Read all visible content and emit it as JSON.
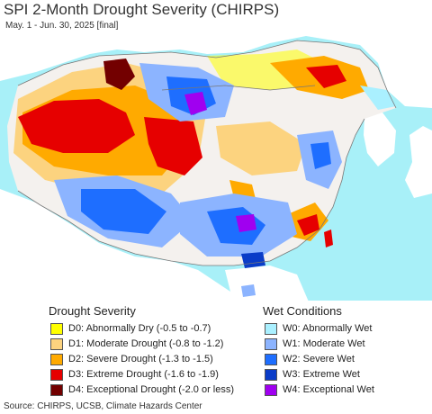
{
  "header": {
    "title": "SPI 2-Month Drought Severity (CHIRPS)",
    "subtitle": "May. 1 - Jun. 30, 2025 [final]"
  },
  "legend": {
    "drought_heading": "Drought Severity",
    "wet_heading": "Wet Conditions",
    "drought_items": [
      {
        "label": "D0: Abnormally Dry (-0.5 to -0.7)",
        "color": "#ffff00"
      },
      {
        "label": "D1: Moderate Drought (-0.8 to -1.2)",
        "color": "#fcd37f"
      },
      {
        "label": "D2: Severe Drought (-1.3 to -1.5)",
        "color": "#ffaa00"
      },
      {
        "label": "D3: Extreme Drought (-1.6 to -1.9)",
        "color": "#e60000"
      },
      {
        "label": "D4: Exceptional Drought (-2.0 or less)",
        "color": "#730000"
      }
    ],
    "wet_items": [
      {
        "label": "W0: Abnormally Wet",
        "color": "#aaf0ff"
      },
      {
        "label": "W1: Moderate Wet",
        "color": "#8cb4ff"
      },
      {
        "label": "W2: Severe Wet",
        "color": "#1e6eff"
      },
      {
        "label": "W3: Extreme Wet",
        "color": "#0a3cc8"
      },
      {
        "label": "W4: Exceptional Wet",
        "color": "#a000f0"
      }
    ]
  },
  "map_colors": {
    "ocean": "#a8f0f8",
    "land_outside": "#ffffff",
    "normal": "#f4f1ee",
    "border": "#777777"
  },
  "footer": {
    "source": "Source: CHIRPS, UCSB, Climate Hazards Center"
  }
}
